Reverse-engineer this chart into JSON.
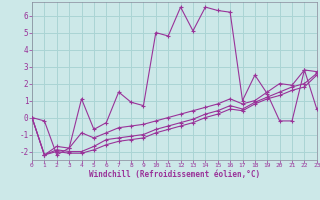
{
  "xlabel": "Windchill (Refroidissement éolien,°C)",
  "bg_color": "#cce8e8",
  "grid_color": "#aad4d4",
  "line_color": "#993399",
  "xlim": [
    0,
    23
  ],
  "ylim": [
    -2.5,
    6.8
  ],
  "xticks": [
    0,
    1,
    2,
    3,
    4,
    5,
    6,
    7,
    8,
    9,
    10,
    11,
    12,
    13,
    14,
    15,
    16,
    17,
    18,
    19,
    20,
    21,
    22,
    23
  ],
  "yticks": [
    -2,
    -1,
    0,
    1,
    2,
    3,
    4,
    5,
    6
  ],
  "series": [
    [
      0,
      -0.2,
      -2.2,
      -1.8,
      1.1,
      -0.7,
      -0.3,
      1.5,
      0.9,
      0.7,
      5.0,
      4.8,
      6.5,
      5.1,
      6.5,
      6.3,
      6.2,
      1.0,
      2.5,
      1.4,
      -0.2,
      -0.2,
      2.8,
      0.5
    ],
    [
      0,
      -2.2,
      -1.7,
      -1.8,
      -0.9,
      -1.2,
      -0.9,
      -0.6,
      -0.5,
      -0.4,
      -0.2,
      0.0,
      0.2,
      0.4,
      0.6,
      0.8,
      1.1,
      0.8,
      1.0,
      1.5,
      2.0,
      1.9,
      2.8,
      2.7
    ],
    [
      0,
      -2.2,
      -1.9,
      -2.0,
      -2.0,
      -1.7,
      -1.3,
      -1.2,
      -1.1,
      -1.0,
      -0.7,
      -0.5,
      -0.3,
      -0.1,
      0.2,
      0.4,
      0.7,
      0.5,
      0.9,
      1.2,
      1.5,
      1.8,
      2.0,
      2.6
    ],
    [
      0,
      -2.2,
      -2.0,
      -2.1,
      -2.1,
      -1.9,
      -1.6,
      -1.4,
      -1.3,
      -1.2,
      -0.9,
      -0.7,
      -0.5,
      -0.3,
      0.0,
      0.2,
      0.5,
      0.4,
      0.8,
      1.1,
      1.3,
      1.6,
      1.8,
      2.5
    ]
  ]
}
